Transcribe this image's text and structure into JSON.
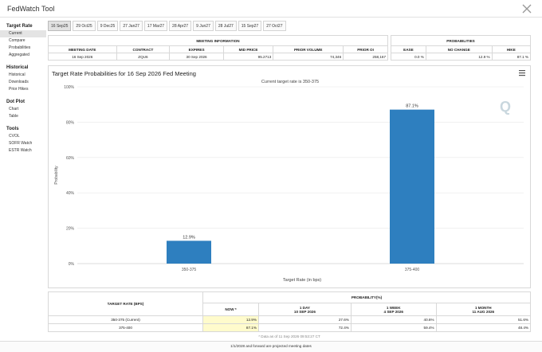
{
  "app": {
    "title": "FedWatch Tool",
    "close_icon": "x-icon"
  },
  "sidebar": {
    "sections": [
      {
        "title": "Target Rate",
        "items": [
          "Current",
          "Compare",
          "Probabilities",
          "Aggregated"
        ],
        "active": 0
      },
      {
        "title": "Historical",
        "items": [
          "Historical",
          "Downloads",
          "Prior Hikes"
        ]
      },
      {
        "title": "Dot Plot",
        "items": [
          "Chart",
          "Table"
        ]
      },
      {
        "title": "Tools",
        "items": [
          "CVOL",
          "SOFR Watch",
          "ESTR Watch"
        ]
      }
    ]
  },
  "tabs": [
    "16 Sep25",
    "29 Oct25",
    "9 Dec25",
    "27 Jan27",
    "17 Mar27",
    "28 Apr27",
    "9 Jun27",
    "28 Jul27",
    "15 Sep27",
    "27 Oct27"
  ],
  "active_tab": 0,
  "meeting_info": {
    "heading": "MEETING INFORMATION",
    "columns": [
      "MEETING DATE",
      "CONTRACT",
      "EXPIRES",
      "MID PRICE",
      "PRIOR VOLUME",
      "PRIOR OI"
    ],
    "values": [
      "16 Sep 2026",
      "ZQU6",
      "30 Sep 2026",
      "95.2713",
      "74,346",
      "258,167"
    ]
  },
  "probabilities": {
    "heading": "PROBABILITIES",
    "columns": [
      "EASE",
      "NO CHANGE",
      "HIKE"
    ],
    "values": [
      "0.0 %",
      "12.9 %",
      "87.1 %"
    ]
  },
  "chart_panel": {
    "menu_icon": "hamburger-menu-icon",
    "watermark_icon": "q-logo-icon"
  },
  "chart_data": {
    "type": "bar",
    "title": "Target Rate Probabilities for 16 Sep 2026 Fed Meeting",
    "subtitle": "Current target rate is 350-375",
    "xlabel": "Target Rate (in bps)",
    "ylabel": "Probability",
    "categories": [
      "350-375",
      "375-400"
    ],
    "values": [
      12.9,
      87.1
    ],
    "data_labels": [
      "12.9%",
      "87.1%"
    ],
    "ylim": [
      0,
      100
    ],
    "yticks": [
      0,
      20,
      40,
      60,
      80,
      100
    ],
    "ytick_labels": [
      "0%",
      "20%",
      "40%",
      "60%",
      "80%",
      "100%"
    ],
    "bar_color": "#2e7fbf",
    "grid": true
  },
  "summary_table": {
    "target_rate_header": "TARGET RATE (BPS)",
    "probability_header": "PROBABILITY(%)",
    "periods": [
      {
        "label": "NOW *",
        "date": ""
      },
      {
        "label": "1 DAY",
        "date": "10 SEP 2026"
      },
      {
        "label": "1 WEEK",
        "date": "4 SEP 2026"
      },
      {
        "label": "1 MONTH",
        "date": "11 AUG 2026"
      }
    ],
    "rows": [
      {
        "rate": "350-375 (Current)",
        "values": [
          "12.9%",
          "27.6%",
          "40.6%",
          "51.6%"
        ]
      },
      {
        "rate": "375-400",
        "values": [
          "87.1%",
          "72.4%",
          "59.4%",
          "48.4%"
        ]
      }
    ],
    "footnote": "* Data as of 11 Sep 2026 09:53:27 CT"
  },
  "bottom_note": "1/1/2028 and forward are projected meeting dates"
}
